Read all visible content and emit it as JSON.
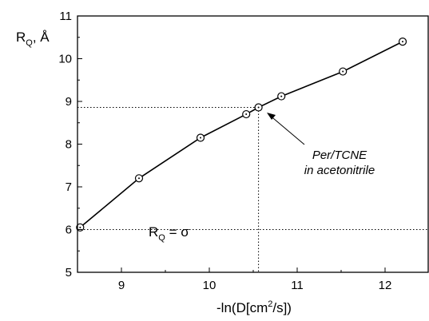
{
  "chart_data": {
    "type": "line",
    "xlabel": {
      "prefix": "-ln(D[cm",
      "sup": "2",
      "suffix": "/s])"
    },
    "ylabel": {
      "main": "R",
      "sub": "Q",
      "suffix": ", Å"
    },
    "xlim": [
      8.5,
      12.5
    ],
    "ylim": [
      5,
      11
    ],
    "xticks": [
      "9",
      "10",
      "11",
      "12"
    ],
    "yticks": [
      "5",
      "6",
      "7",
      "8",
      "9",
      "10",
      "11"
    ],
    "grid": false,
    "series": [
      {
        "x": [
          8.53,
          9.2,
          9.9,
          10.42,
          10.56,
          10.82,
          11.52,
          12.2
        ],
        "y": [
          6.05,
          7.2,
          8.15,
          8.7,
          8.86,
          9.12,
          9.7,
          10.4
        ],
        "marker": "circle-dot",
        "color": "#000000"
      }
    ],
    "reference_lines": {
      "sigma_y": 6.0,
      "highlight_x": 10.56,
      "highlight_y": 8.86
    },
    "annotations": {
      "equation": {
        "main": "R",
        "sub": "Q",
        "suffix": " = σ"
      },
      "callout_line1": "Per/TCNE",
      "callout_line2": "in acetonitrile"
    }
  }
}
